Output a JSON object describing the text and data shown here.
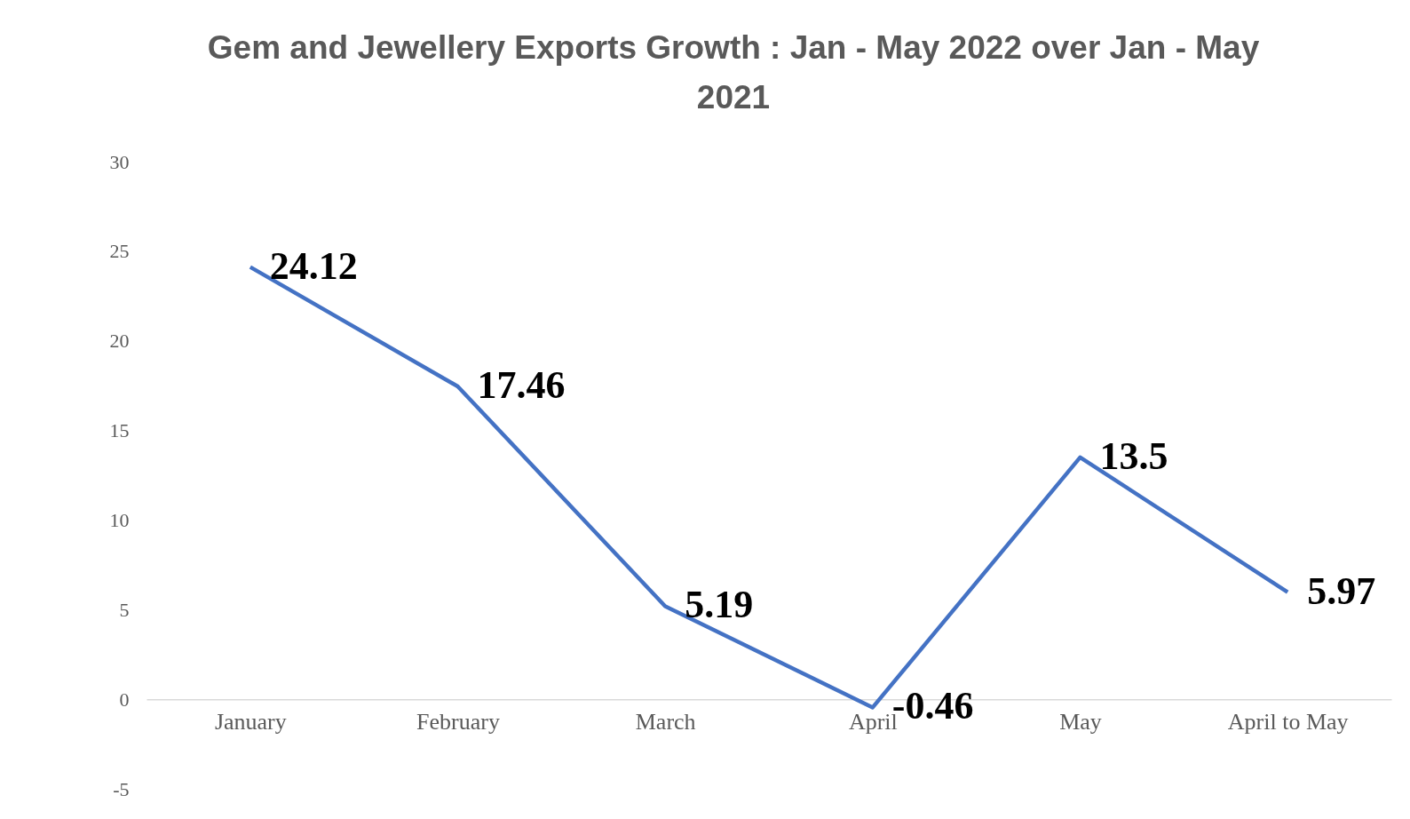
{
  "chart_data": {
    "type": "line",
    "title": "Gem and Jewellery Exports Growth : Jan - May 2022 over Jan - May 2021",
    "categories": [
      "January",
      "February",
      "March",
      "April",
      "May",
      "April to May"
    ],
    "series": [
      {
        "color": "#4472c4",
        "values": [
          24.12,
          17.46,
          5.19,
          -0.46,
          13.5,
          5.97
        ]
      }
    ],
    "ylim": [
      -5,
      30
    ],
    "yticks": [
      -5,
      0,
      5,
      10,
      15,
      20,
      25,
      30
    ],
    "grid": false,
    "legend": false,
    "marker": "none",
    "line_style": "solid",
    "data_labels": true
  }
}
